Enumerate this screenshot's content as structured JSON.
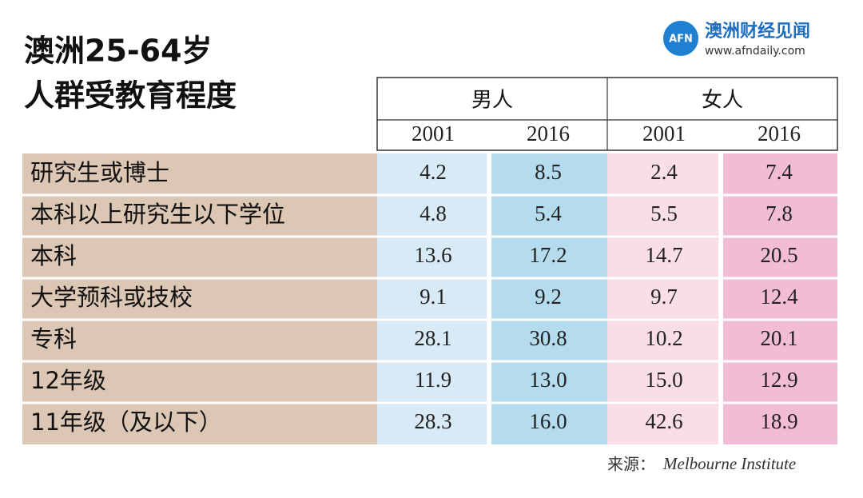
{
  "title": [
    "澳洲25-64岁",
    "人群受教育程度"
  ],
  "logo": {
    "mark": "AFN",
    "name": "澳洲财经见闻",
    "url": "www.afndaily.com"
  },
  "table": {
    "groups": [
      "男人",
      "女人"
    ],
    "years": [
      "2001",
      "2016",
      "2001",
      "2016"
    ],
    "rows": [
      {
        "label": "研究生或博士",
        "values": [
          "4.2",
          "8.5",
          "2.4",
          "7.4"
        ]
      },
      {
        "label": "本科以上研究生以下学位",
        "values": [
          "4.8",
          "5.4",
          "5.5",
          "7.8"
        ]
      },
      {
        "label": "本科",
        "values": [
          "13.6",
          "17.2",
          "14.7",
          "20.5"
        ]
      },
      {
        "label": "大学预科或技校",
        "values": [
          "9.1",
          "9.2",
          "9.7",
          "12.4"
        ]
      },
      {
        "label": "专科",
        "values": [
          "28.1",
          "30.8",
          "10.2",
          "20.1"
        ]
      },
      {
        "label": "12年级",
        "values": [
          "11.9",
          "13.0",
          "15.0",
          "12.9"
        ]
      },
      {
        "label": "11年级（及以下）",
        "values": [
          "28.3",
          "16.0",
          "42.6",
          "18.9"
        ]
      }
    ]
  },
  "source": {
    "label": "来源：",
    "name": "Melbourne Institute"
  }
}
